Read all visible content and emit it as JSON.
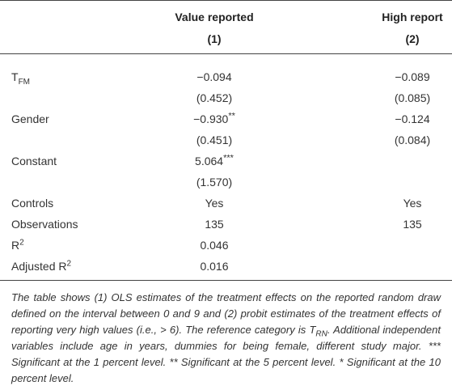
{
  "table": {
    "headers": [
      {
        "title": "Value reported",
        "number": "(1)"
      },
      {
        "title": "High report",
        "number": "(2)"
      }
    ],
    "rows": [
      {
        "label": "T",
        "label_sub": "FM",
        "c1": "−0.094",
        "c2": "−0.089"
      },
      {
        "c1": "(0.452)",
        "c2": "(0.085)"
      },
      {
        "label": "Gender",
        "c1": "−0.930",
        "c1_stars": "**",
        "c2": "−0.124"
      },
      {
        "c1": "(0.451)",
        "c2": "(0.084)"
      },
      {
        "label": "Constant",
        "c1": "5.064",
        "c1_stars": "***"
      },
      {
        "c1": "(1.570)"
      },
      {
        "label": "Controls",
        "c1": "Yes",
        "c2": "Yes"
      },
      {
        "label": "Observations",
        "c1": "135",
        "c2": "135"
      },
      {
        "label": "R",
        "label_sup": "2",
        "c1": "0.046"
      },
      {
        "label": "Adjusted R",
        "label_sup": "2",
        "c1": "0.016"
      }
    ],
    "note": [
      {
        "text": "The table shows (1) OLS estimates of the treatment effects on the reported random draw defined on the interval between 0 and 9 and (2) probit estimates of the treatment effects of reporting very high values (i.e., > 6). The reference category is T"
      },
      {
        "sub": "RN"
      },
      {
        "text": ". Additional independent variables include age in years, dummies for being female, different study major. *** Significant at the 1 percent level. ** Significant at the 5 percent level. * Significant at the 10 percent level."
      }
    ]
  }
}
